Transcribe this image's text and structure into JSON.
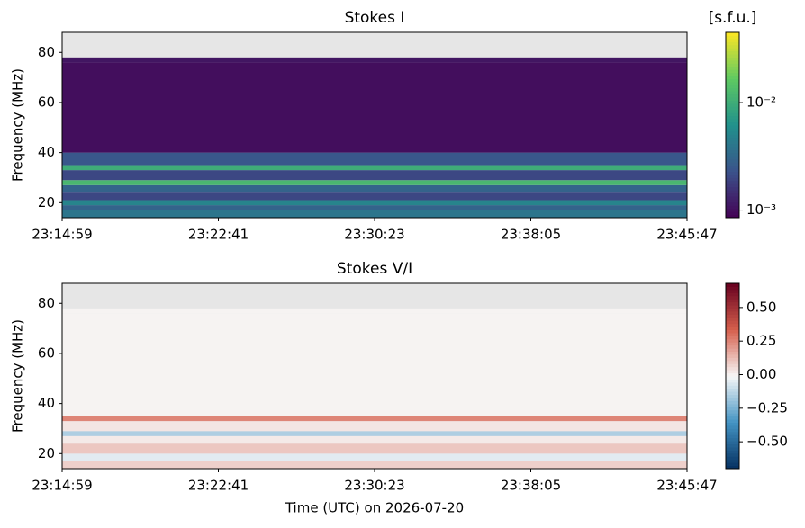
{
  "chart_data": [
    {
      "type": "heatmap",
      "title": "Stokes I",
      "ylabel": "Frequency (MHz)",
      "xlim": [
        "23:14:59",
        "23:45:47"
      ],
      "xticks": [
        "23:14:59",
        "23:22:41",
        "23:30:23",
        "23:38:05",
        "23:45:47"
      ],
      "ylim": [
        14,
        88
      ],
      "yticks": [
        20,
        40,
        60,
        80
      ],
      "ybins": [
        14,
        17,
        19,
        21,
        24,
        27,
        29,
        33,
        35,
        40,
        76,
        78,
        88
      ],
      "values": [
        0.004,
        0.003,
        0.005,
        0.002,
        0.003,
        0.012,
        0.002,
        0.01,
        0.0025,
        0.001,
        0.0011,
        null
      ],
      "colormap": "viridis",
      "color_scale": "log",
      "colorbar_title": "[s.f.u.]",
      "clim": [
        0.00085,
        0.045
      ],
      "cticks": [
        {
          "value": 0.01,
          "label": "10⁻²"
        },
        {
          "value": 0.001,
          "label": "10⁻³"
        }
      ]
    },
    {
      "type": "heatmap",
      "title": "Stokes V/I",
      "ylabel": "Frequency (MHz)",
      "xlabel": "Time (UTC) on 2026-07-20",
      "xlim": [
        "23:14:59",
        "23:45:47"
      ],
      "xticks": [
        "23:14:59",
        "23:22:41",
        "23:30:23",
        "23:38:05",
        "23:45:47"
      ],
      "ylim": [
        14,
        88
      ],
      "yticks": [
        20,
        40,
        60,
        80
      ],
      "ybins": [
        14,
        17,
        20,
        24,
        27,
        29,
        33,
        35,
        76,
        78,
        88
      ],
      "values": [
        0.08,
        -0.05,
        0.1,
        0.02,
        -0.15,
        0.03,
        0.25,
        0.0,
        0.0,
        null
      ],
      "colormap": "RdBu_r",
      "color_scale": "linear",
      "clim": [
        -0.7,
        0.68
      ],
      "cticks": [
        {
          "value": 0.5,
          "label": "0.50"
        },
        {
          "value": 0.25,
          "label": "0.25"
        },
        {
          "value": 0,
          "label": "0.00"
        },
        {
          "value": -0.25,
          "label": "−0.25"
        },
        {
          "value": -0.5,
          "label": "−0.50"
        }
      ]
    }
  ]
}
